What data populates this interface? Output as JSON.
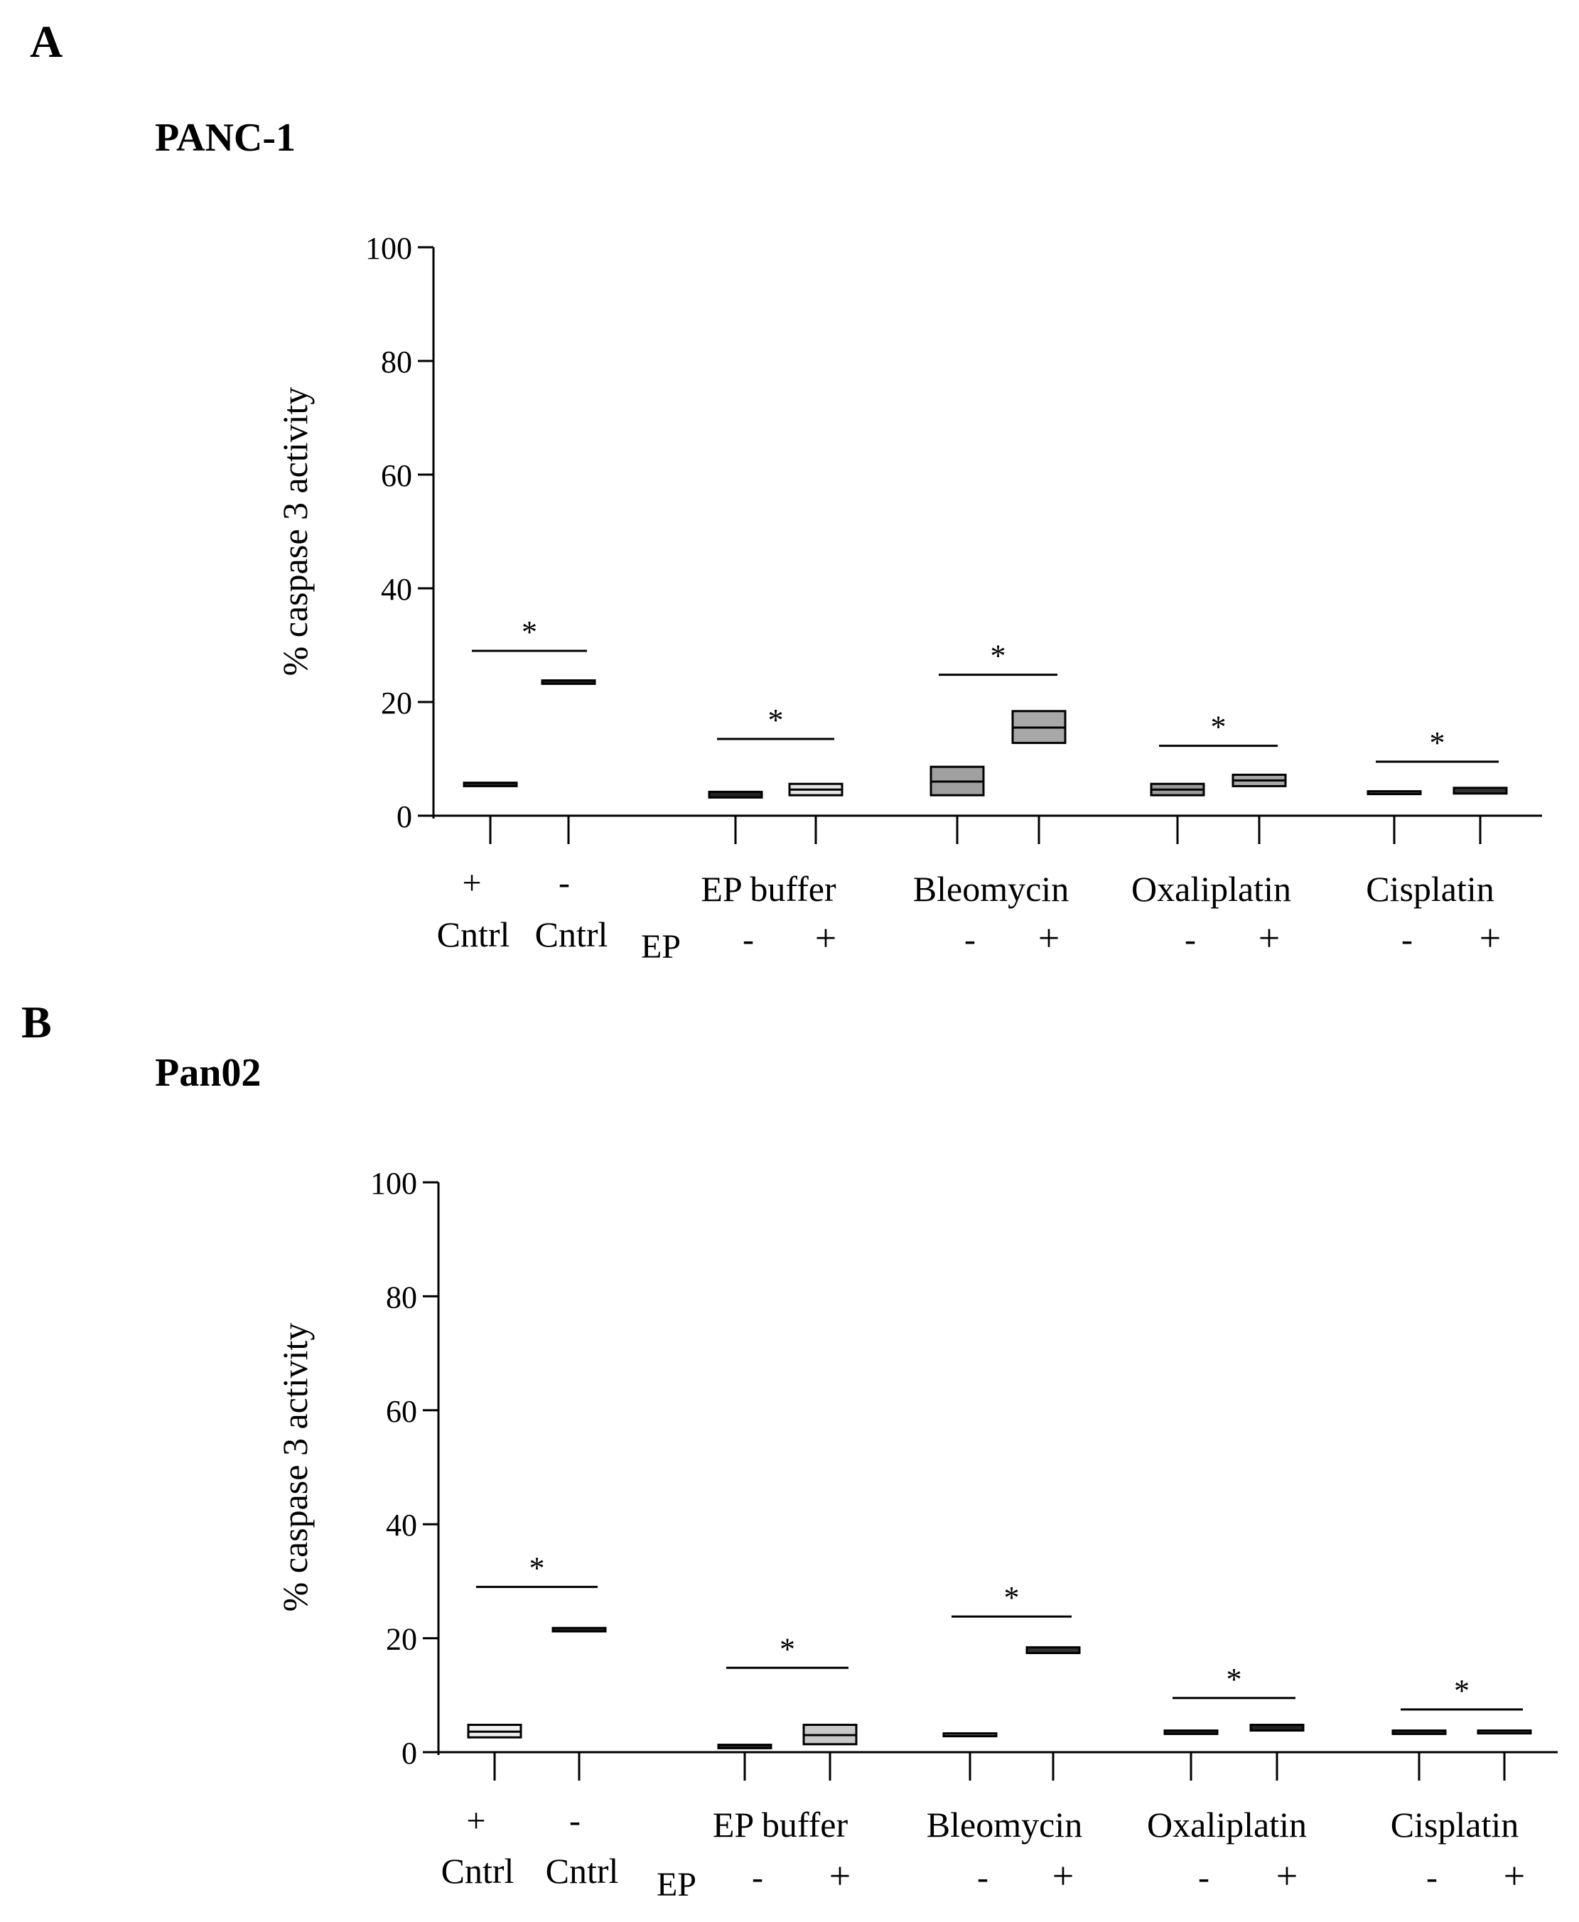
{
  "figure": {
    "panels": [
      {
        "letter": "A",
        "title": "PANC-1"
      },
      {
        "letter": "B",
        "title": "Pan02"
      }
    ]
  },
  "chart_data": [
    {
      "type": "boxplot",
      "panel": "A",
      "title": "PANC-1",
      "ylabel": "% caspase 3 activity",
      "ylim": [
        0,
        100
      ],
      "yticks": [
        0,
        20,
        40,
        60,
        80,
        100
      ],
      "xlabel": "",
      "group_labels": [
        "EP buffer",
        "Bleomycin",
        "Oxaliplatin",
        "Cisplatin"
      ],
      "control_labels": [
        {
          "sign": "+",
          "name": "Cntrl"
        },
        {
          "sign": "-",
          "name": "Cntrl"
        }
      ],
      "ep_row_label": "EP",
      "ep_signs": [
        "-",
        "+"
      ],
      "significance_marker": "*",
      "boxes": [
        {
          "group": "Cntrl",
          "label": "+",
          "low": 5.2,
          "high": 5.8,
          "median": 5.5,
          "fill": "#222222"
        },
        {
          "group": "Cntrl",
          "label": "-",
          "low": 23.2,
          "high": 23.8,
          "median": 23.5,
          "fill": "#222222"
        },
        {
          "group": "EP buffer",
          "label": "-",
          "low": 3.2,
          "high": 4.2,
          "median": 3.7,
          "fill": "#222222"
        },
        {
          "group": "EP buffer",
          "label": "+",
          "low": 3.6,
          "high": 5.6,
          "median": 4.6,
          "fill": "#e4e4e4"
        },
        {
          "group": "Bleomycin",
          "label": "-",
          "low": 3.6,
          "high": 8.6,
          "median": 6.0,
          "fill": "#a0a0a0"
        },
        {
          "group": "Bleomycin",
          "label": "+",
          "low": 12.8,
          "high": 18.4,
          "median": 15.5,
          "fill": "#a8a8a8"
        },
        {
          "group": "Oxaliplatin",
          "label": "-",
          "low": 3.6,
          "high": 5.6,
          "median": 4.6,
          "fill": "#9a9a9a"
        },
        {
          "group": "Oxaliplatin",
          "label": "+",
          "low": 5.2,
          "high": 7.2,
          "median": 6.2,
          "fill": "#a8a8a8"
        },
        {
          "group": "Cisplatin",
          "label": "-",
          "low": 3.8,
          "high": 4.3,
          "median": 4.0,
          "fill": "#444444"
        },
        {
          "group": "Cisplatin",
          "label": "+",
          "low": 3.9,
          "high": 4.9,
          "median": 4.4,
          "fill": "#333333"
        }
      ],
      "significance": [
        {
          "pair": [
            0,
            1
          ],
          "y": 29
        },
        {
          "pair": [
            2,
            3
          ],
          "y": 13.5
        },
        {
          "pair": [
            4,
            5
          ],
          "y": 24.8
        },
        {
          "pair": [
            6,
            7
          ],
          "y": 12.3
        },
        {
          "pair": [
            8,
            9
          ],
          "y": 9.5
        }
      ]
    },
    {
      "type": "boxplot",
      "panel": "B",
      "title": "Pan02",
      "ylabel": "% caspase 3 activity",
      "ylim": [
        0,
        100
      ],
      "yticks": [
        0,
        20,
        40,
        60,
        80,
        100
      ],
      "xlabel": "",
      "group_labels": [
        "EP buffer",
        "Bleomycin",
        "Oxaliplatin",
        "Cisplatin"
      ],
      "control_labels": [
        {
          "sign": "+",
          "name": "Cntrl"
        },
        {
          "sign": "-",
          "name": "Cntrl"
        }
      ],
      "ep_row_label": "EP",
      "ep_signs": [
        "-",
        "+"
      ],
      "significance_marker": "*",
      "boxes": [
        {
          "group": "Cntrl",
          "label": "+",
          "low": 2.6,
          "high": 4.8,
          "median": 3.6,
          "fill": "#f0f0f0"
        },
        {
          "group": "Cntrl",
          "label": "-",
          "low": 21.2,
          "high": 21.8,
          "median": 21.5,
          "fill": "#222222"
        },
        {
          "group": "EP buffer",
          "label": "-",
          "low": 0.7,
          "high": 1.3,
          "median": 1.0,
          "fill": "#222222"
        },
        {
          "group": "EP buffer",
          "label": "+",
          "low": 1.4,
          "high": 4.8,
          "median": 3.0,
          "fill": "#c8c8c8"
        },
        {
          "group": "Bleomycin",
          "label": "-",
          "low": 3.0,
          "high": 3.3,
          "median": 3.2,
          "fill": "#666666"
        },
        {
          "group": "Bleomycin",
          "label": "+",
          "low": 17.4,
          "high": 18.4,
          "median": 17.9,
          "fill": "#333333"
        },
        {
          "group": "Oxaliplatin",
          "label": "-",
          "low": 3.2,
          "high": 3.8,
          "median": 3.5,
          "fill": "#222222"
        },
        {
          "group": "Oxaliplatin",
          "label": "+",
          "low": 3.8,
          "high": 4.8,
          "median": 4.3,
          "fill": "#222222"
        },
        {
          "group": "Cisplatin",
          "label": "-",
          "low": 3.2,
          "high": 3.8,
          "median": 3.5,
          "fill": "#222222"
        },
        {
          "group": "Cisplatin",
          "label": "+",
          "low": 3.4,
          "high": 3.8,
          "median": 3.6,
          "fill": "#444444"
        }
      ],
      "significance": [
        {
          "pair": [
            0,
            1
          ],
          "y": 29
        },
        {
          "pair": [
            2,
            3
          ],
          "y": 14.8
        },
        {
          "pair": [
            4,
            5
          ],
          "y": 23.8
        },
        {
          "pair": [
            6,
            7
          ],
          "y": 9.5
        },
        {
          "pair": [
            8,
            9
          ],
          "y": 7.5
        }
      ]
    }
  ]
}
